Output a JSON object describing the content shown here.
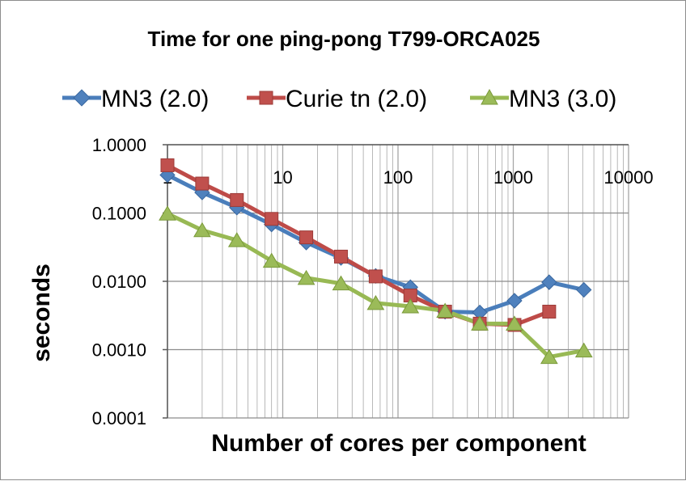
{
  "chart_data": {
    "type": "line",
    "title": "Time for one ping-pong T799-ORCA025",
    "xlabel": "Number of cores per component",
    "ylabel": "seconds",
    "x_scale": "log",
    "y_scale": "log",
    "xlim": [
      1,
      10000
    ],
    "ylim": [
      0.0001,
      1
    ],
    "x_ticks": [
      "1",
      "10",
      "100",
      "1000",
      "10000"
    ],
    "y_ticks": [
      "1.0000",
      "0.1000",
      "0.0100",
      "0.0010",
      "0.0001"
    ],
    "grid": true,
    "legend_position": "top",
    "x": [
      1,
      2,
      4,
      8,
      16,
      32,
      64,
      128,
      256,
      512,
      1024,
      2048,
      4096
    ],
    "series": [
      {
        "name": "MN3 (2.0)",
        "color": "#4a7ebb",
        "marker": "diamond",
        "values": [
          0.36,
          0.2,
          0.12,
          0.068,
          0.037,
          0.022,
          0.012,
          0.0082,
          0.0036,
          0.0035,
          0.0052,
          0.0097,
          0.0075
        ]
      },
      {
        "name": "Curie tn (2.0)",
        "color": "#be4b48",
        "marker": "square",
        "values": [
          0.5,
          0.27,
          0.155,
          0.082,
          0.044,
          0.023,
          0.0118,
          0.0062,
          0.0036,
          0.0024,
          0.0023,
          0.0036,
          null
        ]
      },
      {
        "name": "MN3 (3.0)",
        "color": "#98b954",
        "marker": "triangle",
        "values": [
          0.098,
          0.056,
          0.04,
          0.02,
          0.0112,
          0.0093,
          0.0048,
          0.0043,
          0.0037,
          0.0024,
          0.0024,
          0.00078,
          0.00097
        ]
      }
    ]
  }
}
